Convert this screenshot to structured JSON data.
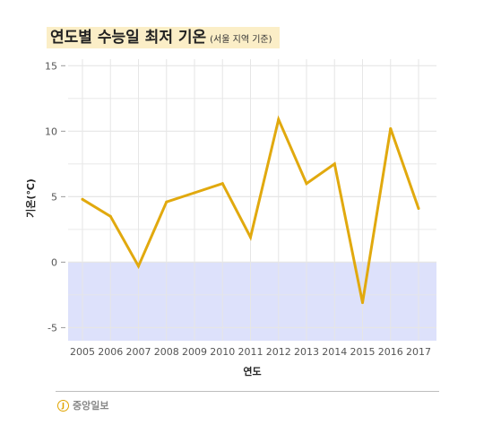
{
  "title": "연도별 수능일 최저 기온",
  "subtitle": "(서울 지역 기준)",
  "brand": "중앙일보",
  "brand_mark": "J",
  "colors": {
    "line": "#e1a90e",
    "negative_band": "#dde1fb",
    "grid": "#e6e6e6"
  },
  "chart_data": {
    "type": "line",
    "title": "연도별 수능일 최저 기온",
    "subtitle": "(서울 지역 기준)",
    "xlabel": "연도",
    "ylabel": "기온(℃)",
    "x": [
      2005,
      2006,
      2007,
      2008,
      2009,
      2010,
      2011,
      2012,
      2013,
      2014,
      2015,
      2016,
      2017
    ],
    "x_tick_labels": [
      "2005",
      "2006",
      "2007",
      "2008",
      "2009",
      "2010",
      "2011",
      "2012",
      "2013",
      "2014",
      "2015",
      "2016",
      "2017"
    ],
    "y_ticks": [
      15,
      10,
      5,
      0,
      -5
    ],
    "y_tick_labels": [
      "15",
      "10",
      "5",
      "0",
      "-5"
    ],
    "ylim": [
      -6,
      15.5
    ],
    "series": [
      {
        "values": [
          4.8,
          3.5,
          -0.3,
          4.6,
          5.3,
          6.0,
          1.9,
          10.9,
          6.0,
          7.5,
          -3.1,
          10.2,
          4.1
        ]
      }
    ],
    "grid": true,
    "shaded_region": "below 0"
  }
}
